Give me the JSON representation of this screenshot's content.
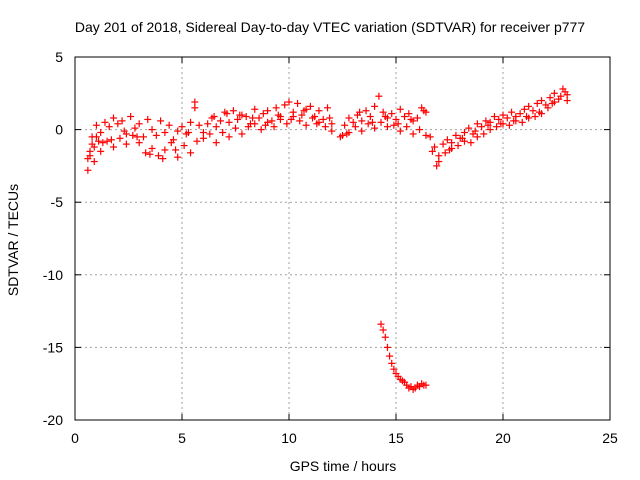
{
  "chart_data": {
    "type": "scatter",
    "title": "Day 201 of 2018, Sidereal Day-to-day VTEC variation (SDTVAR) for receiver p777",
    "xlabel": "GPS time / hours",
    "ylabel": "SDTVAR / TECUs",
    "xlim": [
      0,
      25
    ],
    "ylim": [
      -20,
      5
    ],
    "x_ticks": [
      0,
      5,
      10,
      15,
      20,
      25
    ],
    "y_ticks": [
      -20,
      -15,
      -10,
      -5,
      0,
      5
    ],
    "x_tick_labels": [
      "0",
      "5",
      "10",
      "15",
      "20",
      "25"
    ],
    "y_tick_labels": [
      "-20",
      "-15",
      "-10",
      "-5",
      "0",
      "5"
    ],
    "grid": true,
    "marker": "+",
    "color": "#ff0000",
    "series": [
      {
        "name": "SDTVAR",
        "x": [
          0.6,
          0.7,
          0.8,
          0.9,
          1.0,
          1.1,
          1.2,
          1.4,
          1.6,
          1.8,
          2.0,
          2.2,
          2.4,
          2.6,
          2.8,
          3.0,
          3.2,
          3.4,
          3.6,
          3.8,
          4.0,
          4.2,
          4.4,
          4.6,
          4.8,
          5.0,
          5.2,
          5.4,
          5.6,
          5.8,
          6.0,
          6.2,
          6.4,
          6.6,
          6.8,
          7.0,
          7.2,
          7.4,
          7.6,
          7.8,
          8.0,
          8.2,
          8.4,
          8.6,
          8.8,
          9.0,
          9.2,
          9.4,
          9.6,
          9.8,
          10.0,
          10.2,
          10.4,
          10.6,
          10.8,
          11.0,
          11.2,
          11.4,
          11.6,
          11.8,
          12.0,
          12.4,
          12.6,
          12.8,
          13.0,
          13.2,
          13.4,
          13.6,
          13.8,
          14.0,
          14.2,
          14.4,
          14.6,
          14.8,
          15.0,
          15.2,
          15.4,
          15.6,
          15.8,
          16.0,
          16.2,
          16.4,
          16.6,
          16.8,
          17.0,
          17.2,
          17.4,
          17.6,
          17.8,
          18.0,
          18.2,
          18.4,
          18.6,
          18.8,
          19.0,
          19.2,
          19.4,
          19.6,
          19.8,
          20.0,
          20.2,
          20.4,
          20.6,
          20.8,
          21.0,
          21.2,
          21.4,
          21.6,
          21.8,
          22.0,
          22.2,
          22.4,
          22.6,
          22.8,
          23.0,
          0.6,
          0.8,
          1.0,
          1.2,
          1.5,
          1.8,
          2.1,
          2.4,
          2.7,
          3.0,
          3.3,
          3.6,
          3.9,
          4.2,
          4.5,
          4.8,
          5.1,
          5.4,
          5.7,
          6.0,
          6.3,
          6.6,
          6.9,
          7.2,
          7.5,
          7.8,
          8.1,
          8.4,
          8.7,
          9.0,
          9.3,
          9.6,
          9.9,
          10.2,
          10.5,
          10.8,
          11.1,
          11.4,
          11.7,
          12.0,
          12.5,
          12.8,
          13.1,
          13.4,
          13.7,
          14.0,
          14.3,
          14.6,
          14.9,
          15.2,
          15.5,
          15.8,
          16.1,
          16.4,
          16.7,
          17.0,
          17.3,
          17.6,
          17.9,
          18.2,
          18.5,
          18.8,
          19.1,
          19.4,
          19.7,
          20.0,
          20.3,
          20.6,
          20.9,
          21.2,
          21.5,
          21.8,
          22.1,
          22.4,
          22.7,
          23.0,
          0.7,
          0.9,
          1.3,
          1.7,
          2.3,
          2.9,
          3.5,
          4.1,
          4.7,
          5.3,
          5.6,
          6.5,
          7.1,
          7.7,
          8.3,
          8.9,
          9.5,
          10.1,
          10.7,
          11.3,
          11.9,
          12.7,
          13.3,
          13.9,
          14.5,
          15.1,
          15.7,
          16.3,
          16.9,
          17.5,
          18.1,
          18.7,
          19.3,
          19.9,
          20.5,
          21.1,
          21.7,
          22.3,
          22.9,
          14.3,
          14.4,
          14.5,
          14.6,
          14.7,
          14.8,
          14.9,
          15.0,
          15.1,
          15.2,
          15.3,
          15.4,
          15.5,
          15.6,
          15.7,
          15.8,
          15.9,
          16.0,
          16.1,
          16.2,
          16.3,
          16.4
        ],
        "y": [
          -2.8,
          -1.5,
          -0.5,
          -1.2,
          0.3,
          -0.8,
          -0.2,
          0.5,
          0.2,
          0.8,
          0.4,
          0.6,
          -0.3,
          0.9,
          0.1,
          0.4,
          -0.5,
          0.7,
          0.0,
          -0.4,
          0.6,
          -0.2,
          0.3,
          -0.7,
          -0.1,
          0.2,
          -0.3,
          0.5,
          1.9,
          0.3,
          -0.2,
          0.4,
          0.8,
          0.2,
          0.6,
          1.2,
          0.5,
          1.3,
          0.7,
          1.0,
          0.9,
          0.4,
          1.4,
          0.8,
          1.1,
          1.3,
          0.6,
          1.5,
          0.9,
          1.7,
          1.9,
          1.2,
          1.8,
          1.0,
          1.4,
          1.6,
          0.9,
          1.3,
          0.7,
          1.5,
          0.4,
          -0.5,
          0.3,
          0.8,
          0.5,
          1.0,
          0.6,
          1.3,
          0.9,
          1.6,
          2.3,
          1.2,
          0.8,
          1.1,
          0.7,
          1.4,
          0.9,
          1.1,
          0.6,
          0.8,
          1.5,
          1.2,
          -0.5,
          -1.2,
          -1.8,
          -1.0,
          -0.7,
          -0.9,
          -0.4,
          -0.6,
          -0.2,
          0.1,
          -0.3,
          0.4,
          0.2,
          0.6,
          0.5,
          0.9,
          0.7,
          1.0,
          0.8,
          1.2,
          0.9,
          1.1,
          1.4,
          1.6,
          1.3,
          1.8,
          2.0,
          1.7,
          2.2,
          2.5,
          2.1,
          2.8,
          2.4,
          -2.0,
          -1.0,
          -0.5,
          -1.5,
          -0.8,
          -1.2,
          -0.6,
          -1.0,
          -0.4,
          -0.9,
          -1.6,
          -1.3,
          -1.8,
          -1.4,
          -0.9,
          -1.9,
          -1.1,
          -1.6,
          -0.8,
          -0.6,
          -0.3,
          -0.9,
          -0.2,
          -0.5,
          0.1,
          -0.3,
          0.2,
          0.4,
          0.0,
          0.5,
          0.2,
          0.7,
          0.4,
          0.9,
          0.6,
          0.3,
          0.8,
          0.5,
          0.2,
          -0.1,
          -0.4,
          -0.2,
          0.2,
          -0.1,
          0.4,
          0.1,
          0.5,
          0.2,
          0.3,
          -0.1,
          0.2,
          -0.3,
          0.0,
          -0.4,
          -1.5,
          -2.2,
          -1.6,
          -1.3,
          -1.1,
          -0.8,
          -0.9,
          -0.5,
          -0.3,
          0.0,
          0.2,
          0.4,
          0.3,
          0.6,
          0.5,
          0.8,
          0.9,
          1.1,
          1.5,
          1.9,
          2.3,
          2.0,
          -1.8,
          -2.2,
          -0.9,
          -0.7,
          -0.1,
          -0.5,
          -1.7,
          -2.0,
          -1.4,
          -0.2,
          1.5,
          0.9,
          1.1,
          1.0,
          0.8,
          0.3,
          1.0,
          0.7,
          1.3,
          0.4,
          0.8,
          -0.3,
          1.2,
          0.5,
          0.9,
          0.4,
          0.7,
          1.3,
          -2.5,
          -1.4,
          -0.6,
          -0.1,
          0.3,
          0.4,
          0.6,
          0.9,
          1.2,
          1.8,
          2.6,
          -13.4,
          -13.8,
          -14.3,
          -15.0,
          -15.6,
          -16.1,
          -16.5,
          -16.8,
          -17.0,
          -17.2,
          -17.3,
          -17.4,
          -17.6,
          -17.8,
          -17.7,
          -17.9,
          -17.8,
          -17.6,
          -17.7,
          -17.5,
          -17.6,
          -17.6
        ]
      }
    ]
  }
}
